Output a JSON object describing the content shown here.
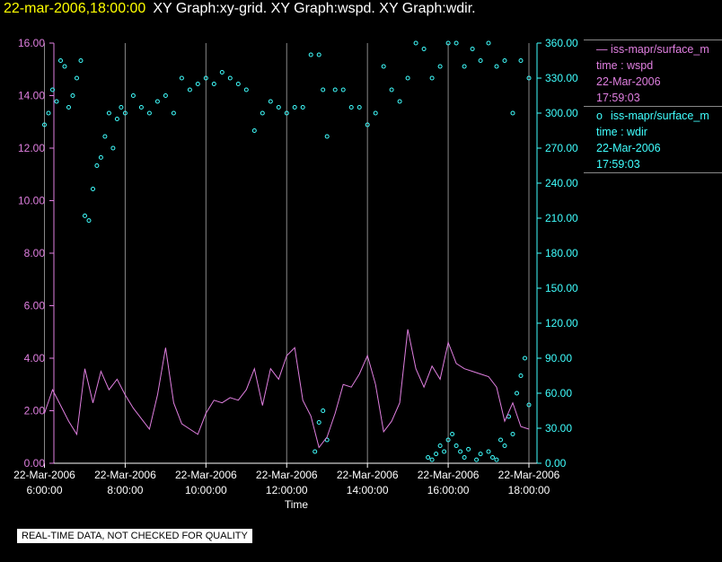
{
  "header": {
    "timestamp": "22-mar-2006,18:00:00",
    "titles": "XY Graph:xy-grid.  XY Graph:wspd.  XY Graph:wdir."
  },
  "legend": {
    "series1": {
      "name": "iss-mapr/surface_m",
      "line2": "time : wspd",
      "line3": "22-Mar-2006",
      "line4": "17:59:03"
    },
    "series2": {
      "name": "iss-mapr/surface_m",
      "line2": "time : wdir",
      "line3": "22-Mar-2006",
      "line4": "17:59:03"
    }
  },
  "notice": "REAL-TIME DATA, NOT CHECKED FOR QUALITY",
  "colors": {
    "wspd": "#e07fe0",
    "wdir": "#40ffff",
    "grid": "#888888",
    "background": "#000000",
    "timestamp": "#ffff00"
  },
  "chart_data": {
    "type": "line",
    "xlabel": "Time",
    "x_range_hours": [
      6.0,
      18.1
    ],
    "x_ticks": [
      {
        "hour": 6,
        "date": "22-Mar-2006",
        "time": "6:00:00"
      },
      {
        "hour": 8,
        "date": "22-Mar-2006",
        "time": "8:00:00"
      },
      {
        "hour": 10,
        "date": "22-Mar-2006",
        "time": "10:00:00"
      },
      {
        "hour": 12,
        "date": "22-Mar-2006",
        "time": "12:00:00"
      },
      {
        "hour": 14,
        "date": "22-Mar-2006",
        "time": "14:00:00"
      },
      {
        "hour": 16,
        "date": "22-Mar-2006",
        "time": "16:00:00"
      },
      {
        "hour": 18,
        "date": "22-Mar-2006",
        "time": "18:00:00"
      }
    ],
    "y_left": {
      "ylim": [
        0,
        16
      ],
      "ticks": [
        "0.00",
        "2.00",
        "4.00",
        "6.00",
        "8.00",
        "10.00",
        "12.00",
        "14.00",
        "16.00"
      ]
    },
    "y_right": {
      "ylim": [
        0,
        360
      ],
      "ticks": [
        "0.00",
        "30.00",
        "60.00",
        "90.00",
        "120.00",
        "150.00",
        "180.00",
        "210.00",
        "240.00",
        "270.00",
        "300.00",
        "330.00",
        "360.00"
      ]
    },
    "grid": "vertical lines at x ticks",
    "series": [
      {
        "key": "wspd",
        "axis": "left",
        "style": "line",
        "x": [
          6.0,
          6.2,
          6.4,
          6.6,
          6.8,
          7.0,
          7.2,
          7.4,
          7.6,
          7.8,
          8.0,
          8.2,
          8.4,
          8.6,
          8.8,
          9.0,
          9.2,
          9.4,
          9.6,
          9.8,
          10.0,
          10.2,
          10.4,
          10.6,
          10.8,
          11.0,
          11.2,
          11.4,
          11.6,
          11.8,
          12.0,
          12.2,
          12.4,
          12.6,
          12.8,
          13.0,
          13.2,
          13.4,
          13.6,
          13.8,
          14.0,
          14.2,
          14.4,
          14.6,
          14.8,
          15.0,
          15.2,
          15.4,
          15.6,
          15.8,
          16.0,
          16.2,
          16.4,
          16.6,
          16.8,
          17.0,
          17.2,
          17.4,
          17.6,
          17.8,
          18.0
        ],
        "y": [
          1.9,
          2.8,
          2.2,
          1.6,
          1.1,
          3.6,
          2.3,
          3.5,
          2.8,
          3.2,
          2.6,
          2.1,
          1.7,
          1.3,
          2.6,
          4.4,
          2.3,
          1.5,
          1.3,
          1.1,
          1.9,
          2.4,
          2.3,
          2.5,
          2.4,
          2.8,
          3.6,
          2.2,
          3.6,
          3.2,
          4.1,
          4.4,
          2.4,
          1.8,
          0.6,
          1.0,
          1.9,
          3.0,
          2.9,
          3.4,
          4.1,
          3.0,
          1.2,
          1.6,
          2.3,
          5.1,
          3.6,
          2.9,
          3.7,
          3.2,
          4.6,
          3.8,
          3.6,
          3.5,
          3.4,
          3.3,
          2.9,
          1.6,
          2.3,
          1.4,
          1.3
        ]
      },
      {
        "key": "wdir",
        "axis": "right",
        "style": "scatter",
        "x": [
          6.0,
          6.1,
          6.2,
          6.3,
          6.4,
          6.5,
          6.6,
          6.7,
          6.8,
          6.9,
          7.0,
          7.1,
          7.2,
          7.3,
          7.4,
          7.5,
          7.6,
          7.7,
          7.8,
          7.9,
          8.0,
          8.2,
          8.4,
          8.6,
          8.8,
          9.0,
          9.2,
          9.4,
          9.6,
          9.8,
          10.0,
          10.2,
          10.4,
          10.6,
          10.8,
          11.0,
          11.2,
          11.4,
          11.6,
          11.8,
          12.0,
          12.2,
          12.4,
          12.6,
          12.8,
          12.9,
          13.0,
          13.2,
          13.4,
          13.6,
          13.8,
          14.0,
          14.2,
          14.4,
          14.6,
          14.8,
          15.0,
          15.2,
          15.4,
          15.6,
          15.8,
          16.0,
          16.2,
          16.4,
          16.6,
          16.8,
          17.0,
          17.2,
          17.4,
          17.6,
          17.8,
          18.0
        ],
        "y": [
          290,
          300,
          320,
          310,
          345,
          340,
          305,
          315,
          330,
          345,
          212,
          208,
          235,
          255,
          262,
          280,
          300,
          270,
          295,
          305,
          300,
          315,
          305,
          300,
          310,
          315,
          300,
          330,
          320,
          325,
          330,
          325,
          335,
          330,
          325,
          320,
          285,
          300,
          310,
          305,
          300,
          305,
          305,
          350,
          350,
          320,
          280,
          320,
          320,
          305,
          305,
          290,
          300,
          340,
          320,
          310,
          330,
          360,
          355,
          330,
          340,
          360,
          360,
          340,
          355,
          345,
          360,
          340,
          345,
          300,
          345,
          330
        ]
      },
      {
        "key": "wdir-low",
        "axis": "right",
        "style": "scatter",
        "x": [
          12.7,
          12.8,
          12.9,
          13.0,
          15.5,
          15.6,
          15.7,
          15.8,
          15.9,
          16.0,
          16.1,
          16.2,
          16.3,
          16.4,
          16.5,
          16.7,
          16.8,
          17.0,
          17.1,
          17.2,
          17.3,
          17.4,
          17.5,
          17.6,
          17.7,
          17.8,
          17.9,
          18.0
        ],
        "y": [
          10,
          35,
          45,
          20,
          5,
          3,
          8,
          15,
          10,
          20,
          25,
          15,
          10,
          5,
          12,
          3,
          8,
          10,
          5,
          3,
          20,
          15,
          40,
          25,
          60,
          75,
          90,
          50
        ]
      }
    ]
  }
}
